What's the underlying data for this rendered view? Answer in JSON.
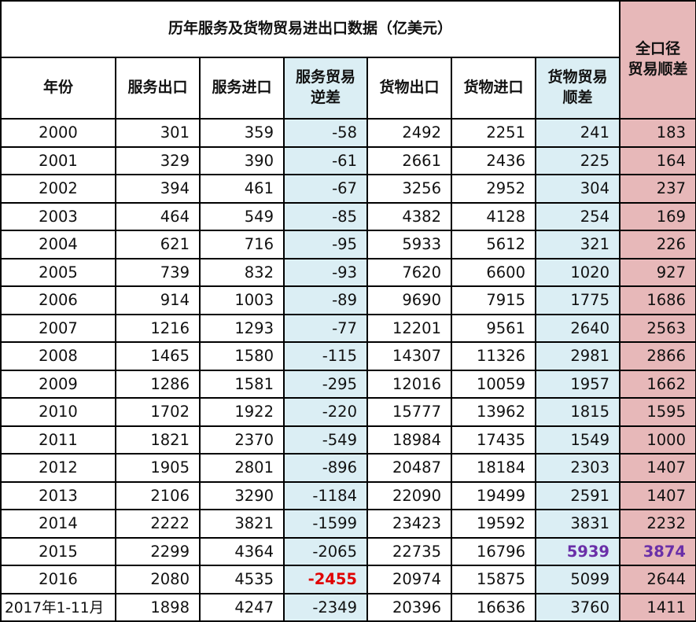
{
  "title": "历年服务及货物贸易进出口数据（亿美元）",
  "corner_header": [
    "全口径",
    "贸易顺差"
  ],
  "headers": [
    [
      "年份"
    ],
    [
      "服务出口"
    ],
    [
      "服务进口"
    ],
    [
      "服务贸易",
      "逆差"
    ],
    [
      "货物出口"
    ],
    [
      "货物进口"
    ],
    [
      "货物贸易",
      "顺差"
    ]
  ],
  "rows": [
    [
      "2000",
      "301",
      "359",
      "-58",
      "2492",
      "2251",
      "241",
      "183"
    ],
    [
      "2001",
      "329",
      "390",
      "-61",
      "2661",
      "2436",
      "225",
      "164"
    ],
    [
      "2002",
      "394",
      "461",
      "-67",
      "3256",
      "2952",
      "304",
      "237"
    ],
    [
      "2003",
      "464",
      "549",
      "-85",
      "4382",
      "4128",
      "254",
      "169"
    ],
    [
      "2004",
      "621",
      "716",
      "-95",
      "5933",
      "5612",
      "321",
      "226"
    ],
    [
      "2005",
      "739",
      "832",
      "-93",
      "7620",
      "6600",
      "1020",
      "927"
    ],
    [
      "2006",
      "914",
      "1003",
      "-89",
      "9690",
      "7915",
      "1775",
      "1686"
    ],
    [
      "2007",
      "1216",
      "1293",
      "-77",
      "12201",
      "9561",
      "2640",
      "2563"
    ],
    [
      "2008",
      "1465",
      "1580",
      "-115",
      "14307",
      "11326",
      "2981",
      "2866"
    ],
    [
      "2009",
      "1286",
      "1581",
      "-295",
      "12016",
      "10059",
      "1957",
      "1662"
    ],
    [
      "2010",
      "1702",
      "1922",
      "-220",
      "15777",
      "13962",
      "1815",
      "1595"
    ],
    [
      "2011",
      "1821",
      "2370",
      "-549",
      "18984",
      "17435",
      "1549",
      "1000"
    ],
    [
      "2012",
      "1905",
      "2801",
      "-896",
      "20487",
      "18184",
      "2303",
      "1407"
    ],
    [
      "2013",
      "2106",
      "3290",
      "-1184",
      "22090",
      "19499",
      "2591",
      "1407"
    ],
    [
      "2014",
      "2222",
      "3821",
      "-1599",
      "23423",
      "19592",
      "3831",
      "2232"
    ],
    [
      "2015",
      "2299",
      "4364",
      "-2065",
      "22735",
      "16796",
      "5939",
      "3874"
    ],
    [
      "2016",
      "2080",
      "4535",
      "-2455",
      "20974",
      "15875",
      "5099",
      "2644"
    ],
    [
      "2017年1-11月",
      "1898",
      "4247",
      "-2349",
      "20396",
      "16636",
      "3760",
      "1411"
    ]
  ],
  "colors": {
    "blue_column": "#dbeef4",
    "pink_column": "#e7b8b9",
    "highlight_red": "#e00000",
    "highlight_purple": "#6a2fa8"
  }
}
